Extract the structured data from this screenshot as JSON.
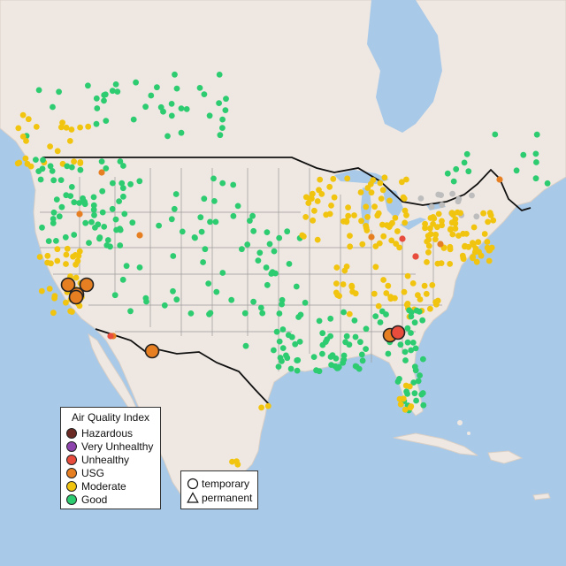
{
  "legend": {
    "title": "Air Quality Index",
    "items": [
      {
        "label": "Hazardous",
        "color": "#6b2b24"
      },
      {
        "label": "Very Unhealthy",
        "color": "#8e44ad"
      },
      {
        "label": "Unhealthy",
        "color": "#e74c3c"
      },
      {
        "label": "USG",
        "color": "#e67e22"
      },
      {
        "label": "Moderate",
        "color": "#f1c40f"
      },
      {
        "label": "Good",
        "color": "#2ecc71"
      }
    ]
  },
  "type_legend": {
    "temporary": "temporary",
    "permanent": "permanent"
  },
  "colors": {
    "water": "#a9c9e8",
    "land": "#efe8e2",
    "no_data": "#bdbdbd"
  }
}
